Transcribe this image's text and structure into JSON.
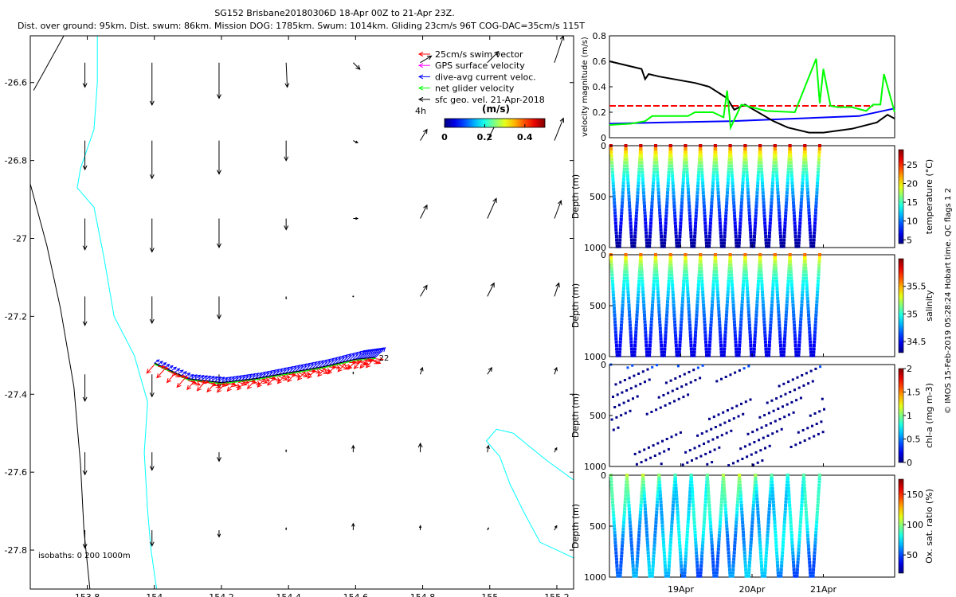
{
  "title_line1": "SG152 Brisbane20180306D 18-Apr 00Z to 21-Apr 23Z.",
  "title_line2": "Dist. over ground: 95km. Dist. swum: 86km. Mission DOG: 1785km. Swum: 1014km. Gliding 23cm/s 96T COG-DAC=35cm/s 115T",
  "footer_credit": "© IMOS 15-Feb-2019 05:28:24 Hobart time. QC flags 1  2",
  "colors": {
    "swim": "#ff0000",
    "gps": "#ff00ff",
    "dac": "#0000ff",
    "net": "#00ff00",
    "geo": "#000000",
    "coast": "#00ffff",
    "isobath": "#000000"
  },
  "chart_data": [
    {
      "type": "map",
      "name": "track_map",
      "xlim": [
        153.63,
        155.25
      ],
      "ylim": [
        -27.9,
        -26.48
      ],
      "xticks": [
        153.8,
        154,
        154.2,
        154.4,
        154.6,
        154.8,
        155,
        155.2
      ],
      "xtick_labels": [
        "153.8",
        "154",
        "154.2",
        "154.4",
        "154.6",
        "154.8",
        "155",
        "155.2"
      ],
      "yticks": [
        -26.6,
        -26.8,
        -27,
        -27.2,
        -27.4,
        -27.6,
        -27.8
      ],
      "ytick_labels": [
        "-26.6",
        "-26.8",
        "-27",
        "-27.2",
        "-27.4",
        "-27.6",
        "-27.8"
      ],
      "legend": [
        {
          "label": "25cm/s swim vector",
          "color": "#ff0000"
        },
        {
          "label": "GPS surface velocity",
          "color": "#ff00ff"
        },
        {
          "label": "dive-avg current veloc.",
          "color": "#0000ff"
        },
        {
          "label": "net glider velocity",
          "color": "#00ff00"
        },
        {
          "label": "sfc geo. vel. 21-Apr-2018",
          "color": "#000000"
        }
      ],
      "scale_label": "4h",
      "colorbar_label": "(m/s)",
      "colorbar_ticks": [
        "0",
        "0.2",
        "0.4"
      ],
      "colorbar_range": [
        0,
        0.5
      ],
      "isobath_label": "isobaths: 0   200  1000m",
      "end_label": "22",
      "track": [
        [
          154,
          -27.32
        ],
        [
          154.1,
          -27.36
        ],
        [
          154.2,
          -27.37
        ],
        [
          154.3,
          -27.36
        ],
        [
          154.4,
          -27.345
        ],
        [
          154.5,
          -27.33
        ],
        [
          154.6,
          -27.31
        ],
        [
          154.66,
          -27.305
        ]
      ],
      "geo_grid_lon": [
        153.8,
        154,
        154.2,
        154.4,
        154.6,
        154.8,
        155,
        155.2
      ],
      "geo_grid_lat": [
        -26.6,
        -26.8,
        -27,
        -27.2,
        -27.4,
        -27.6,
        -27.8
      ],
      "geo_u": [
        [
          0,
          0,
          0,
          0.01,
          0.06,
          0.1,
          0.1,
          0.08
        ],
        [
          0,
          0,
          0,
          0,
          0.04,
          0.06,
          0.08,
          0.08
        ],
        [
          0,
          0,
          0,
          0,
          0.04,
          0.06,
          0.08,
          0.06
        ],
        [
          0,
          0,
          0,
          0,
          0,
          0.06,
          0.06,
          0.04
        ],
        [
          0,
          0,
          0,
          0,
          0,
          0.02,
          0.04,
          0.02
        ],
        [
          0,
          0,
          0,
          0,
          0,
          0,
          0.01,
          0.02
        ],
        [
          0,
          0,
          0,
          0,
          0,
          0,
          0.01,
          0.02
        ]
      ],
      "geo_v": [
        [
          -0.22,
          -0.38,
          -0.32,
          -0.22,
          -0.06,
          0.06,
          0.1,
          0.24
        ],
        [
          -0.26,
          -0.34,
          -0.3,
          -0.18,
          -0.02,
          0.1,
          0.16,
          0.2
        ],
        [
          -0.28,
          -0.3,
          -0.26,
          -0.1,
          0,
          0.12,
          0.18,
          0.16
        ],
        [
          -0.26,
          -0.24,
          -0.2,
          -0.02,
          0,
          0.1,
          0.12,
          0.12
        ],
        [
          -0.24,
          -0.2,
          -0.12,
          0,
          0.02,
          0.06,
          0.06,
          0.06
        ],
        [
          -0.2,
          -0.16,
          -0.08,
          0.02,
          0.06,
          0.08,
          0.06,
          0.04
        ],
        [
          -0.16,
          -0.14,
          -0.06,
          0.02,
          0.06,
          0.04,
          0.02,
          0.04
        ]
      ]
    },
    {
      "type": "line",
      "name": "velocity_panel",
      "ylabel": "velocity magnitude (m/s)",
      "xlim": [
        18,
        22
      ],
      "ylim": [
        0,
        0.8
      ],
      "yticks": [
        0,
        0.2,
        0.4,
        0.6,
        0.8
      ],
      "ytick_labels": [
        "0",
        "0.2",
        "0.4",
        "0.6",
        "0.8"
      ],
      "series": [
        {
          "name": "swim",
          "color": "#ff0000",
          "dashed": true,
          "x": [
            18,
            21.7
          ],
          "y": [
            0.25,
            0.25
          ]
        },
        {
          "name": "dive-avg current",
          "color": "#0000ff",
          "x": [
            18,
            18.8,
            19.7,
            20.6,
            21.5,
            22
          ],
          "y": [
            0.11,
            0.12,
            0.13,
            0.15,
            0.17,
            0.23
          ]
        },
        {
          "name": "surface geo velocity",
          "color": "#000000",
          "x": [
            18,
            18.45,
            18.5,
            18.55,
            18.7,
            19.2,
            19.4,
            19.65,
            19.75,
            19.9,
            20.3,
            20.5,
            20.8,
            21.0,
            21.4,
            21.75,
            21.9,
            22
          ],
          "y": [
            0.6,
            0.54,
            0.46,
            0.5,
            0.48,
            0.43,
            0.4,
            0.31,
            0.22,
            0.26,
            0.13,
            0.08,
            0.04,
            0.04,
            0.07,
            0.12,
            0.18,
            0.15
          ]
        },
        {
          "name": "net glider",
          "color": "#00ff00",
          "x": [
            18,
            18.3,
            18.5,
            18.6,
            19.1,
            19.2,
            19.45,
            19.6,
            19.65,
            19.7,
            19.85,
            20.2,
            20.6,
            20.9,
            20.95,
            21.0,
            21.1,
            21.2,
            21.4,
            21.6,
            21.7,
            21.8,
            21.85,
            22
          ],
          "y": [
            0.1,
            0.11,
            0.13,
            0.17,
            0.17,
            0.2,
            0.2,
            0.16,
            0.37,
            0.08,
            0.26,
            0.21,
            0.2,
            0.62,
            0.27,
            0.54,
            0.25,
            0.24,
            0.24,
            0.21,
            0.26,
            0.26,
            0.5,
            0.2
          ]
        }
      ]
    },
    {
      "type": "scatter",
      "name": "temperature_section",
      "ylabel": "Depth (m)",
      "ylim": [
        0,
        1000
      ],
      "yticks": [
        "0",
        "500",
        "1000"
      ],
      "colorbar_label": "temperature (°C)",
      "colorbar_range": [
        4,
        29
      ],
      "colorbar_ticks": [
        "5",
        "10",
        "15",
        "20",
        "25"
      ],
      "n_yos": 14,
      "surface_value": 27,
      "deep_value": 4.5
    },
    {
      "type": "scatter",
      "name": "salinity_section",
      "ylabel": "Depth (m)",
      "ylim": [
        0,
        1000
      ],
      "yticks": [
        "0",
        "500",
        "1000"
      ],
      "colorbar_label": "salinity",
      "colorbar_range": [
        34.3,
        36
      ],
      "colorbar_ticks": [
        "34.5",
        "35",
        "35.5"
      ],
      "n_yos": 14,
      "surface_value": 35.6,
      "deep_value": 34.45
    },
    {
      "type": "scatter",
      "name": "chla_section",
      "ylabel": "Depth (m)",
      "ylim": [
        0,
        1000
      ],
      "yticks": [
        "0",
        "500",
        "1000"
      ],
      "colorbar_label": "chl-a (mg m-3)",
      "colorbar_range": [
        0,
        2
      ],
      "colorbar_ticks": [
        "0",
        "0.5",
        "1",
        "1.5",
        "2"
      ],
      "surface_value": 0.4,
      "deep_value": 0
    },
    {
      "type": "scatter",
      "name": "oxygen_section",
      "ylabel": "Depth (m)",
      "ylim": [
        0,
        1000
      ],
      "yticks": [
        "0",
        "500",
        "1000"
      ],
      "colorbar_label": "Ox. sat. ratio (%)",
      "colorbar_range": [
        20,
        175
      ],
      "colorbar_ticks": [
        "50",
        "100",
        "150"
      ],
      "n_yos": 13,
      "surface_value": 98,
      "deep_value": 60
    },
    {
      "type": "time_axis",
      "name": "shared_time_axis",
      "xlim": [
        18,
        22
      ],
      "xticks": [
        19,
        20,
        21
      ],
      "xtick_labels": [
        "19Apr",
        "20Apr",
        "21Apr"
      ]
    }
  ]
}
